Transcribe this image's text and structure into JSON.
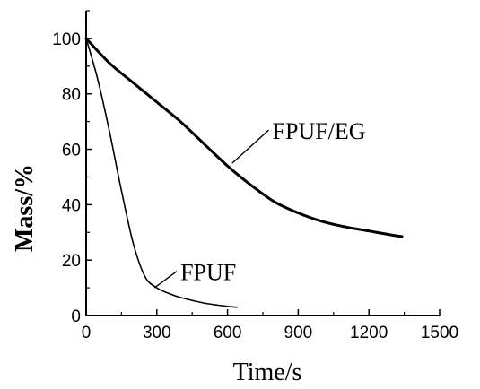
{
  "chart_data": {
    "type": "line",
    "xlabel": "Time/s",
    "ylabel": "Mass/%",
    "xlim": [
      0,
      1500
    ],
    "ylim": [
      0,
      110
    ],
    "xticks": [
      0,
      300,
      600,
      900,
      1200,
      1500
    ],
    "yticks": [
      0,
      20,
      40,
      60,
      80,
      100
    ],
    "x_tick_labels": [
      "0",
      "300",
      "600",
      "900",
      "1200",
      "1500"
    ],
    "y_tick_labels": [
      "0",
      "20",
      "40",
      "60",
      "80",
      "100"
    ],
    "grid": false,
    "legend": "none",
    "series": [
      {
        "name": "FPUF/EG",
        "x": [
          0,
          100,
          200,
          300,
          400,
          500,
          600,
          700,
          800,
          900,
          1000,
          1100,
          1200,
          1300,
          1340
        ],
        "y": [
          100,
          91,
          84,
          77,
          70,
          62,
          54,
          47,
          41,
          37,
          34,
          32,
          30.5,
          29,
          28.5
        ]
      },
      {
        "name": "FPUF",
        "x": [
          0,
          50,
          100,
          150,
          200,
          250,
          300,
          350,
          400,
          500,
          600,
          640
        ],
        "y": [
          100,
          85,
          66,
          45,
          26,
          14,
          10,
          8,
          6.5,
          4.5,
          3.3,
          3
        ]
      }
    ],
    "annotations": [
      {
        "text": "FPUF/EG",
        "series": "FPUF/EG",
        "arrow_to": [
          620,
          55
        ],
        "text_at": [
          790,
          65
        ]
      },
      {
        "text": "FPUF",
        "series": "FPUF",
        "arrow_to": [
          290,
          10
        ],
        "text_at": [
          400,
          14
        ]
      }
    ]
  }
}
